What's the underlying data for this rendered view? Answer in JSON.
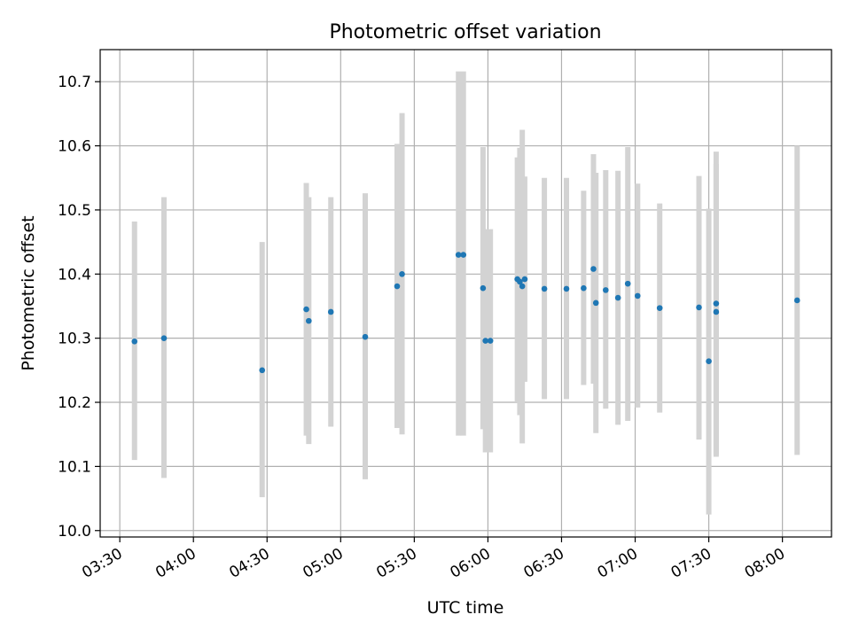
{
  "chart_data": {
    "type": "scatter",
    "title": "Photometric offset variation",
    "xlabel": "UTC time",
    "ylabel": "Photometric offset",
    "xlim": [
      "03:22",
      "08:20"
    ],
    "ylim": [
      9.99,
      10.75
    ],
    "x_ticks": [
      "03:30",
      "04:00",
      "04:30",
      "05:00",
      "05:30",
      "06:00",
      "06:30",
      "07:00",
      "07:30",
      "08:00"
    ],
    "y_ticks": [
      "10.0",
      "10.1",
      "10.2",
      "10.3",
      "10.4",
      "10.5",
      "10.6",
      "10.7"
    ],
    "grid": true,
    "colors": {
      "marker": "#1f77b4",
      "errorbar": "#d3d3d3",
      "grid": "#b0b0b0"
    },
    "points": [
      {
        "time": "03:36",
        "y": 10.295,
        "err_low": 10.11,
        "err_high": 10.482
      },
      {
        "time": "03:48",
        "y": 10.3,
        "err_low": 10.082,
        "err_high": 10.52
      },
      {
        "time": "04:28",
        "y": 10.25,
        "err_low": 10.052,
        "err_high": 10.45
      },
      {
        "time": "04:46",
        "y": 10.345,
        "err_low": 10.148,
        "err_high": 10.542
      },
      {
        "time": "04:47",
        "y": 10.327,
        "err_low": 10.135,
        "err_high": 10.52
      },
      {
        "time": "04:56",
        "y": 10.341,
        "err_low": 10.162,
        "err_high": 10.52
      },
      {
        "time": "05:10",
        "y": 10.302,
        "err_low": 10.08,
        "err_high": 10.526
      },
      {
        "time": "05:23",
        "y": 10.381,
        "err_low": 10.16,
        "err_high": 10.603
      },
      {
        "time": "05:25",
        "y": 10.4,
        "err_low": 10.15,
        "err_high": 10.651
      },
      {
        "time": "05:48",
        "y": 10.43,
        "err_low": 10.148,
        "err_high": 10.716
      },
      {
        "time": "05:50",
        "y": 10.43,
        "err_low": 10.148,
        "err_high": 10.716
      },
      {
        "time": "05:58",
        "y": 10.378,
        "err_low": 10.158,
        "err_high": 10.598
      },
      {
        "time": "05:59",
        "y": 10.296,
        "err_low": 10.122,
        "err_high": 10.47
      },
      {
        "time": "06:01",
        "y": 10.296,
        "err_low": 10.122,
        "err_high": 10.47
      },
      {
        "time": "06:12",
        "y": 10.392,
        "err_low": 10.2,
        "err_high": 10.582
      },
      {
        "time": "06:13",
        "y": 10.388,
        "err_low": 10.18,
        "err_high": 10.597
      },
      {
        "time": "06:14",
        "y": 10.381,
        "err_low": 10.136,
        "err_high": 10.625
      },
      {
        "time": "06:15",
        "y": 10.392,
        "err_low": 10.232,
        "err_high": 10.552
      },
      {
        "time": "06:23",
        "y": 10.377,
        "err_low": 10.205,
        "err_high": 10.55
      },
      {
        "time": "06:32",
        "y": 10.377,
        "err_low": 10.205,
        "err_high": 10.55
      },
      {
        "time": "06:39",
        "y": 10.378,
        "err_low": 10.227,
        "err_high": 10.53
      },
      {
        "time": "06:43",
        "y": 10.408,
        "err_low": 10.229,
        "err_high": 10.587
      },
      {
        "time": "06:44",
        "y": 10.355,
        "err_low": 10.152,
        "err_high": 10.558
      },
      {
        "time": "06:48",
        "y": 10.375,
        "err_low": 10.19,
        "err_high": 10.562
      },
      {
        "time": "06:53",
        "y": 10.363,
        "err_low": 10.165,
        "err_high": 10.561
      },
      {
        "time": "06:57",
        "y": 10.385,
        "err_low": 10.171,
        "err_high": 10.598
      },
      {
        "time": "07:01",
        "y": 10.366,
        "err_low": 10.192,
        "err_high": 10.541
      },
      {
        "time": "07:10",
        "y": 10.347,
        "err_low": 10.184,
        "err_high": 10.51
      },
      {
        "time": "07:26",
        "y": 10.348,
        "err_low": 10.142,
        "err_high": 10.553
      },
      {
        "time": "07:30",
        "y": 10.264,
        "err_low": 10.025,
        "err_high": 10.502
      },
      {
        "time": "07:33",
        "y": 10.341,
        "err_low": 10.115,
        "err_high": 10.572
      },
      {
        "time": "07:33",
        "y": 10.354,
        "err_low": 10.118,
        "err_high": 10.591
      },
      {
        "time": "08:06",
        "y": 10.359,
        "err_low": 10.118,
        "err_high": 10.6
      }
    ]
  }
}
